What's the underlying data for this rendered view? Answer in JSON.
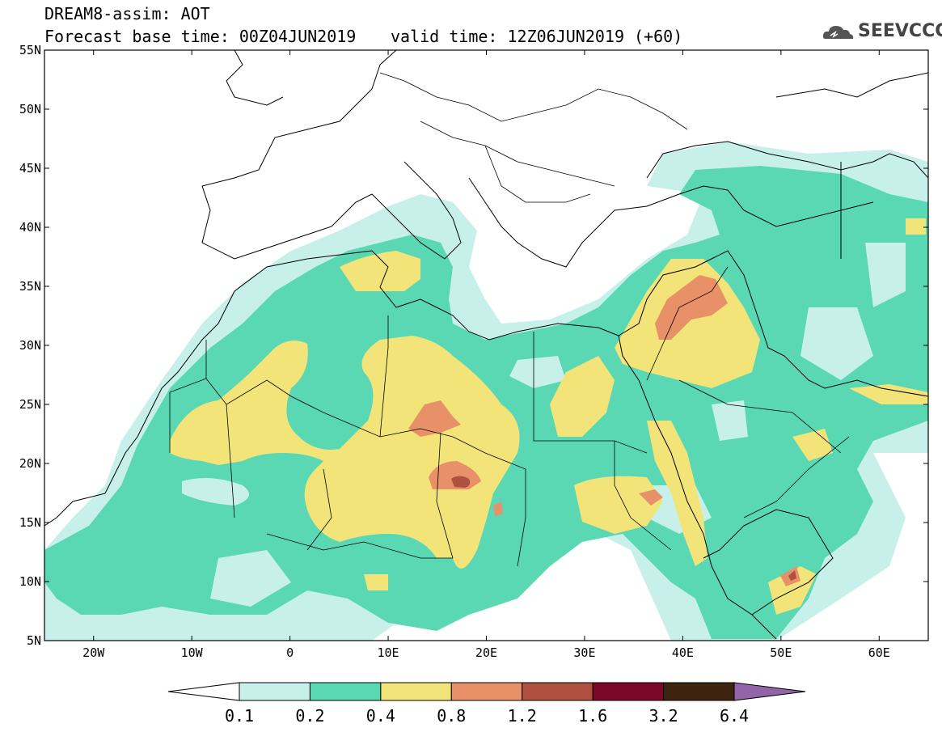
{
  "title": {
    "line1": "DREAM8-assim: AOT",
    "line2": "Forecast base time: 00Z04JUN2019",
    "valid": "valid time: 12Z06JUN2019 (+60)"
  },
  "logo": {
    "text": "SEEVCCC",
    "icon": "cloud-icon"
  },
  "map": {
    "lon_range": [
      -25,
      65
    ],
    "lat_range": [
      5,
      55
    ],
    "lat_ticks": [
      {
        "value": 55,
        "label": "55N"
      },
      {
        "value": 50,
        "label": "50N"
      },
      {
        "value": 45,
        "label": "45N"
      },
      {
        "value": 40,
        "label": "40N"
      },
      {
        "value": 35,
        "label": "35N"
      },
      {
        "value": 30,
        "label": "30N"
      },
      {
        "value": 25,
        "label": "25N"
      },
      {
        "value": 20,
        "label": "20N"
      },
      {
        "value": 15,
        "label": "15N"
      },
      {
        "value": 10,
        "label": "10N"
      },
      {
        "value": 5,
        "label": "5N"
      }
    ],
    "lon_ticks": [
      {
        "value": -20,
        "label": "20W"
      },
      {
        "value": -10,
        "label": "10W"
      },
      {
        "value": 0,
        "label": "0"
      },
      {
        "value": 10,
        "label": "10E"
      },
      {
        "value": 20,
        "label": "20E"
      },
      {
        "value": 30,
        "label": "30E"
      },
      {
        "value": 40,
        "label": "40E"
      },
      {
        "value": 50,
        "label": "50E"
      },
      {
        "value": 60,
        "label": "60E"
      }
    ]
  },
  "colorbar": {
    "colors": [
      "#c8f0ea",
      "#5ad8b4",
      "#f3e47a",
      "#e89068",
      "#b05040",
      "#7c0828",
      "#3c2410",
      "#9464a8"
    ],
    "levels": [
      "0.1",
      "0.2",
      "0.4",
      "0.8",
      "1.2",
      "1.6",
      "3.2",
      "6.4"
    ]
  }
}
